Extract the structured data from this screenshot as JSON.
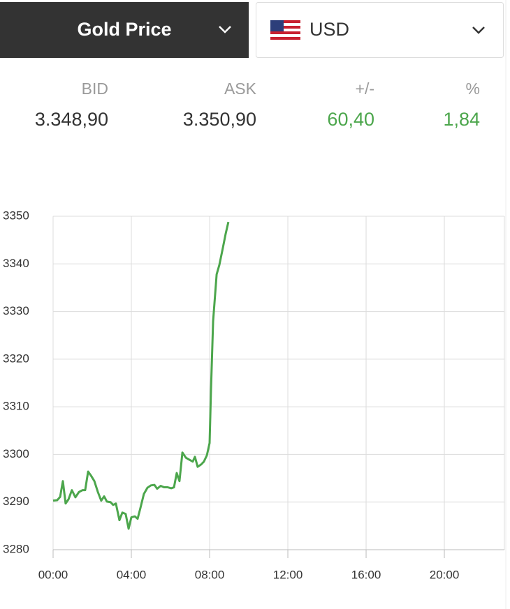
{
  "header": {
    "title": "Gold Price",
    "currency": "USD"
  },
  "quote": {
    "columns": [
      {
        "label": "BID",
        "value": "3.348,90"
      },
      {
        "label": "ASK",
        "value": "3.350,90"
      },
      {
        "label": "+/-",
        "value": "60,40"
      },
      {
        "label": "%",
        "value": "1,84"
      }
    ]
  },
  "chart_data": {
    "type": "line",
    "color": "#4ca64c",
    "grid": true,
    "x": [
      0,
      0.21,
      0.36,
      0.5,
      0.64,
      0.79,
      0.96,
      1.14,
      1.32,
      1.5,
      1.64,
      1.79,
      1.93,
      2.11,
      2.29,
      2.46,
      2.61,
      2.75,
      2.93,
      3.07,
      3.21,
      3.39,
      3.54,
      3.71,
      3.86,
      4.0,
      4.18,
      4.32,
      4.46,
      4.64,
      4.82,
      5.0,
      5.18,
      5.32,
      5.5,
      5.68,
      5.86,
      6.04,
      6.18,
      6.32,
      6.46,
      6.61,
      6.79,
      6.96,
      7.14,
      7.25,
      7.39,
      7.57,
      7.71,
      7.86,
      8.0,
      8.07,
      8.18,
      8.36,
      8.5,
      8.68,
      8.82,
      8.96
    ],
    "values": [
      3290.3,
      3290.4,
      3291.1,
      3294.4,
      3289.7,
      3290.6,
      3292.5,
      3291.0,
      3292.1,
      3292.5,
      3292.5,
      3296.4,
      3295.6,
      3294.4,
      3292.1,
      3290.3,
      3291.2,
      3290.1,
      3290.0,
      3289.4,
      3289.7,
      3286.2,
      3287.8,
      3287.5,
      3284.4,
      3286.8,
      3287.0,
      3286.5,
      3288.7,
      3291.7,
      3293.0,
      3293.5,
      3293.6,
      3292.8,
      3293.4,
      3293.1,
      3293.1,
      3292.9,
      3293.1,
      3296.1,
      3294.4,
      3300.4,
      3299.3,
      3298.9,
      3298.5,
      3299.5,
      3297.4,
      3297.9,
      3298.5,
      3299.8,
      3302.4,
      3313.4,
      3328.0,
      3337.8,
      3339.8,
      3343.4,
      3346.3,
      3348.8
    ],
    "xlim": [
      0,
      23.07
    ],
    "xticks": [
      {
        "value": 0,
        "label": "00:00"
      },
      {
        "value": 4,
        "label": "04:00"
      },
      {
        "value": 8,
        "label": "08:00"
      },
      {
        "value": 12,
        "label": "12:00"
      },
      {
        "value": 16,
        "label": "16:00"
      },
      {
        "value": 20,
        "label": "20:00"
      }
    ],
    "ylim": [
      3280,
      3350
    ],
    "yticks": [
      3280,
      3290,
      3300,
      3310,
      3320,
      3330,
      3340,
      3350
    ]
  }
}
